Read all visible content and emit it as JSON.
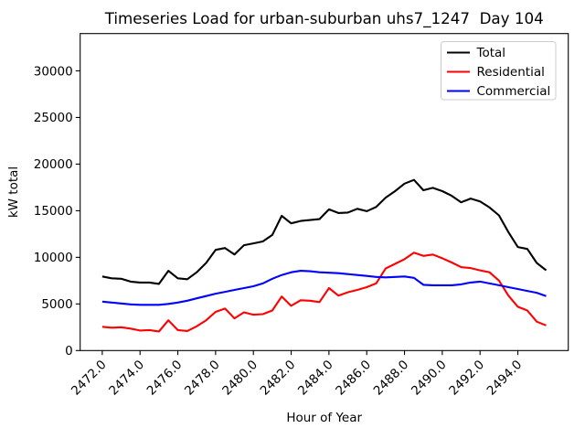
{
  "chart_data": {
    "type": "line",
    "title": "Timeseries Load for urban-suburban uhs7_1247  Day 104",
    "xlabel": "Hour of Year",
    "ylabel": "kW total",
    "grid": false,
    "background": "#ffffff",
    "axis_color": "#000000",
    "legend": {
      "position": "upper right",
      "entries": [
        "Total",
        "Residential",
        "Commercial"
      ]
    },
    "xlim": [
      2470.83,
      2496.67
    ],
    "ylim": [
      0,
      34000
    ],
    "xticks": [
      2472,
      2474,
      2476,
      2478,
      2480,
      2482,
      2484,
      2486,
      2488,
      2490,
      2492,
      2494
    ],
    "xtick_labels": [
      "2472.0",
      "2474.0",
      "2476.0",
      "2478.0",
      "2480.0",
      "2482.0",
      "2484.0",
      "2486.0",
      "2488.0",
      "2490.0",
      "2492.0",
      "2494.0"
    ],
    "yticks": [
      0,
      5000,
      10000,
      15000,
      20000,
      25000,
      30000
    ],
    "ytick_labels": [
      "0",
      "5000",
      "10000",
      "15000",
      "20000",
      "25000",
      "30000"
    ],
    "x": [
      2472.0,
      2472.5,
      2473.0,
      2473.5,
      2474.0,
      2474.5,
      2475.0,
      2475.5,
      2476.0,
      2476.5,
      2477.0,
      2477.5,
      2478.0,
      2478.5,
      2479.0,
      2479.5,
      2480.0,
      2480.5,
      2481.0,
      2481.5,
      2482.0,
      2482.5,
      2483.0,
      2483.5,
      2484.0,
      2484.5,
      2485.0,
      2485.5,
      2486.0,
      2486.5,
      2487.0,
      2487.5,
      2488.0,
      2488.5,
      2489.0,
      2489.5,
      2490.0,
      2490.5,
      2491.0,
      2491.5,
      2492.0,
      2492.5,
      2493.0,
      2493.5,
      2494.0,
      2494.5,
      2495.0,
      2495.5
    ],
    "series": [
      {
        "name": "Total",
        "color": "#000000",
        "values": [
          7950,
          7750,
          7700,
          7400,
          7300,
          7300,
          7150,
          8550,
          7750,
          7650,
          8400,
          9400,
          10800,
          11000,
          10300,
          11300,
          11500,
          11700,
          12400,
          14450,
          13650,
          13900,
          14000,
          14100,
          15150,
          14750,
          14800,
          15200,
          14950,
          15400,
          16400,
          17100,
          17900,
          18300,
          17200,
          17450,
          17100,
          16600,
          15900,
          16300,
          16000,
          15350,
          14500,
          12700,
          11100,
          10900,
          9400,
          8600
        ]
      },
      {
        "name": "Residential",
        "color": "#ff0000",
        "values": [
          2550,
          2450,
          2500,
          2350,
          2150,
          2200,
          2050,
          3250,
          2200,
          2100,
          2600,
          3250,
          4150,
          4500,
          3450,
          4100,
          3850,
          3900,
          4300,
          5800,
          4800,
          5400,
          5350,
          5200,
          6700,
          5900,
          6250,
          6500,
          6800,
          7200,
          8800,
          9300,
          9800,
          10500,
          10150,
          10300,
          9900,
          9450,
          8950,
          8850,
          8600,
          8400,
          7500,
          5900,
          4700,
          4300,
          3100,
          2700
        ]
      },
      {
        "name": "Commercial",
        "color": "#0000ff",
        "values": [
          5250,
          5150,
          5050,
          4950,
          4900,
          4900,
          4900,
          5000,
          5150,
          5350,
          5600,
          5850,
          6100,
          6300,
          6500,
          6700,
          6900,
          7200,
          7700,
          8100,
          8400,
          8550,
          8500,
          8400,
          8350,
          8300,
          8200,
          8100,
          8000,
          7900,
          7850,
          7900,
          7950,
          7800,
          7050,
          7000,
          7000,
          7000,
          7100,
          7300,
          7400,
          7200,
          7000,
          6800,
          6600,
          6400,
          6200,
          5850
        ]
      }
    ]
  }
}
